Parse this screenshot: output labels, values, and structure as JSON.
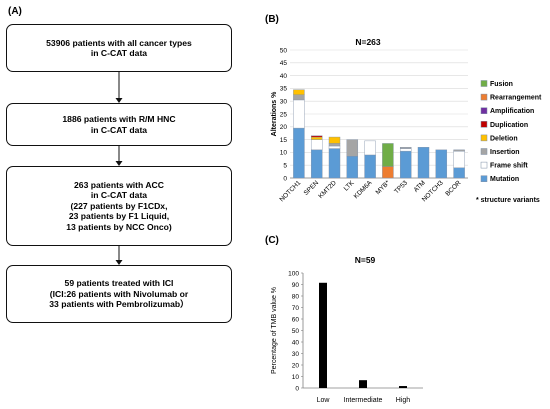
{
  "panel_labels": {
    "a": "(A)",
    "b": "(B)",
    "c": "(C)"
  },
  "flowchart": {
    "boxes": [
      {
        "lines": [
          "53906 patients with all cancer types",
          "in C-CAT data"
        ]
      },
      {
        "lines": [
          "1886 patients with R/M HNC",
          "in C-CAT data"
        ]
      },
      {
        "lines": [
          "263 patients with ACC",
          "in C-CAT data",
          "(227 patients by F1CDx,",
          "23 patients by F1 Liquid,",
          "13 patients by NCC Onco)"
        ]
      },
      {
        "lines": [
          "59 patients treated with ICI",
          "(ICI:26 patients with Nivolumab or",
          "33 patients with Pembrolizumab）"
        ]
      }
    ]
  },
  "chart_data": [
    {
      "type": "bar",
      "stacked": true,
      "title": "N=263",
      "ylabel": "Alterations %",
      "ylim": [
        0,
        50
      ],
      "yticks": [
        0,
        5,
        10,
        15,
        20,
        25,
        30,
        35,
        40,
        45,
        50
      ],
      "grid": true,
      "categories": [
        "NOTCH1",
        "SPEN",
        "KMT2D",
        "LTK",
        "KDM6A",
        "MYB*",
        "TP53",
        "ATM",
        "NOTCH3",
        "BCOR"
      ],
      "series": [
        {
          "name": "Mutation",
          "color": "#5b9bd5",
          "values": [
            19.5,
            11,
            11.5,
            8.5,
            9,
            0,
            10.5,
            12,
            11,
            4
          ]
        },
        {
          "name": "Frame shift",
          "color": "#ffffff",
          "values": [
            11,
            4,
            1,
            0,
            5.5,
            0,
            1,
            0,
            0,
            6.5
          ]
        },
        {
          "name": "Insertion",
          "color": "#a5a5a5",
          "values": [
            2,
            0,
            1,
            6.5,
            0,
            0,
            0.5,
            0,
            0,
            0.5
          ]
        },
        {
          "name": "Deletion",
          "color": "#ffc000",
          "values": [
            2,
            1,
            2.5,
            0,
            0,
            0,
            0,
            0,
            0,
            0
          ]
        },
        {
          "name": "Duplication",
          "color": "#c00000",
          "values": [
            0,
            0.5,
            0,
            0,
            0,
            0,
            0,
            0,
            0,
            0
          ]
        },
        {
          "name": "Amplification",
          "color": "#7030a0",
          "values": [
            0,
            0,
            0,
            0,
            0,
            0,
            0,
            0,
            0,
            0
          ]
        },
        {
          "name": "Rearrangement",
          "color": "#ed7d31",
          "values": [
            0,
            0,
            0,
            0,
            0,
            4.5,
            0,
            0,
            0,
            0
          ]
        },
        {
          "name": "Fusion",
          "color": "#70ad47",
          "values": [
            0,
            0,
            0,
            0,
            0,
            9,
            0,
            0,
            0,
            0
          ]
        }
      ],
      "legend_position": "right",
      "annotation": "* structure variants"
    },
    {
      "type": "bar",
      "title": "N=59",
      "ylabel": "Percentage of TMB value %",
      "ylim": [
        0,
        100
      ],
      "yticks": [
        0,
        10,
        20,
        30,
        40,
        50,
        60,
        70,
        80,
        90,
        100
      ],
      "grid": false,
      "categories": [
        "Low",
        "Intermediate",
        "High"
      ],
      "values": [
        91.5,
        6.8,
        1.7
      ],
      "color": "#000000"
    }
  ]
}
